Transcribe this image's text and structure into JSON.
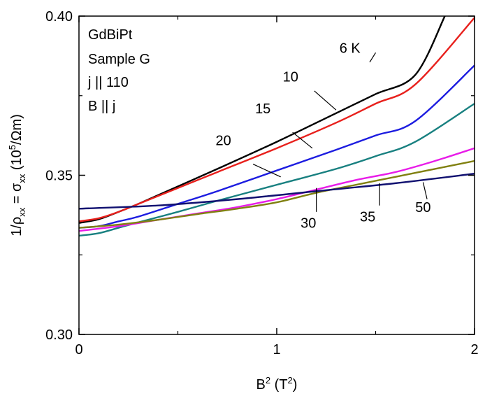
{
  "chart_data": {
    "type": "line",
    "title": "",
    "xlabel_main": "B",
    "xlabel_sup": "2",
    "xlabel_unit_open": " (T",
    "xlabel_unit_sup": "2",
    "xlabel_unit_close": ")",
    "ylabel_parts": {
      "p1": "1/ρ",
      "s1": "xx",
      "p2": " = σ",
      "s2": "xx",
      "p3": " (10",
      "sup": "5",
      "p4": "/Ωm)"
    },
    "xlim": [
      0,
      2
    ],
    "ylim": [
      0.3,
      0.4
    ],
    "x_ticks": [
      0,
      1,
      2
    ],
    "x_tick_labels": [
      "0",
      "1",
      "2"
    ],
    "y_ticks": [
      0.3,
      0.35,
      0.4
    ],
    "y_tick_labels": [
      "0.30",
      "0.35",
      "0.40"
    ],
    "annotation_lines": [
      "GdBiPt",
      "Sample G",
      "j || 110",
      "B || j"
    ],
    "series": [
      {
        "name": "6 K",
        "color": "#000000",
        "x": [
          0,
          0.1,
          0.2,
          0.3,
          0.5,
          0.7,
          1.0,
          1.3,
          1.5,
          1.7,
          1.85
        ],
        "y": [
          0.335,
          0.3362,
          0.3385,
          0.341,
          0.3465,
          0.352,
          0.3605,
          0.3695,
          0.3755,
          0.3815,
          0.4
        ]
      },
      {
        "name": "10",
        "color": "#e8201c",
        "x": [
          0,
          0.1,
          0.2,
          0.3,
          0.5,
          0.7,
          1.0,
          1.3,
          1.5,
          1.7,
          2.0
        ],
        "y": [
          0.3355,
          0.3365,
          0.3385,
          0.341,
          0.346,
          0.351,
          0.3585,
          0.3665,
          0.3725,
          0.3785,
          0.3995
        ]
      },
      {
        "name": "15",
        "color": "#1c1ce0",
        "x": [
          0,
          0.1,
          0.2,
          0.3,
          0.5,
          0.7,
          1.0,
          1.3,
          1.5,
          1.7,
          2.0
        ],
        "y": [
          0.3335,
          0.334,
          0.3355,
          0.337,
          0.341,
          0.345,
          0.3515,
          0.358,
          0.3625,
          0.367,
          0.3845
        ]
      },
      {
        "name": "20",
        "color": "#188080",
        "x": [
          0,
          0.1,
          0.2,
          0.3,
          0.5,
          0.7,
          1.0,
          1.3,
          1.5,
          1.7,
          2.0
        ],
        "y": [
          0.331,
          0.3318,
          0.3335,
          0.3352,
          0.3385,
          0.342,
          0.347,
          0.352,
          0.356,
          0.3605,
          0.3725
        ]
      },
      {
        "name": "30",
        "color": "#e81ce8",
        "x": [
          0,
          0.2,
          0.4,
          0.6,
          0.8,
          1.0,
          1.2,
          1.4,
          1.6,
          1.8,
          2.0
        ],
        "y": [
          0.3325,
          0.334,
          0.336,
          0.338,
          0.34,
          0.3425,
          0.3455,
          0.3485,
          0.351,
          0.3545,
          0.3585
        ]
      },
      {
        "name": "35",
        "color": "#808010",
        "x": [
          0,
          0.2,
          0.4,
          0.6,
          0.8,
          1.0,
          1.2,
          1.4,
          1.6,
          1.8,
          2.0
        ],
        "y": [
          0.3335,
          0.3345,
          0.336,
          0.3378,
          0.3395,
          0.3415,
          0.3445,
          0.347,
          0.3495,
          0.352,
          0.3545
        ]
      },
      {
        "name": "50",
        "color": "#101070",
        "x": [
          0,
          0.4,
          0.8,
          1.2,
          1.6,
          2.0
        ],
        "y": [
          0.3395,
          0.3405,
          0.3425,
          0.345,
          0.3475,
          0.3505
        ]
      }
    ],
    "curve_labels": [
      {
        "text": "6 K",
        "x": 1.37,
        "y": 0.3885,
        "lx1": 1.47,
        "ly1": 0.3855,
        "lx2": 1.5,
        "ly2": 0.3885
      },
      {
        "text": "10",
        "x": 1.07,
        "y": 0.3795,
        "lx1": 1.19,
        "ly1": 0.3765,
        "lx2": 1.3,
        "ly2": 0.3705
      },
      {
        "text": "15",
        "x": 0.93,
        "y": 0.3695,
        "lx1": 1.08,
        "ly1": 0.3635,
        "lx2": 1.18,
        "ly2": 0.3585
      },
      {
        "text": "20",
        "x": 0.73,
        "y": 0.3595,
        "lx1": 0.88,
        "ly1": 0.3535,
        "lx2": 1.02,
        "ly2": 0.3495
      },
      {
        "text": "30",
        "x": 1.16,
        "y": 0.3335,
        "lx1": 1.2,
        "ly1": 0.3385,
        "lx2": 1.2,
        "ly2": 0.346
      },
      {
        "text": "35",
        "x": 1.46,
        "y": 0.3355,
        "lx1": 1.52,
        "ly1": 0.3405,
        "lx2": 1.52,
        "ly2": 0.3475
      },
      {
        "text": "50",
        "x": 1.74,
        "y": 0.3385,
        "lx1": 1.76,
        "ly1": 0.3425,
        "lx2": 1.74,
        "ly2": 0.3478
      }
    ]
  }
}
